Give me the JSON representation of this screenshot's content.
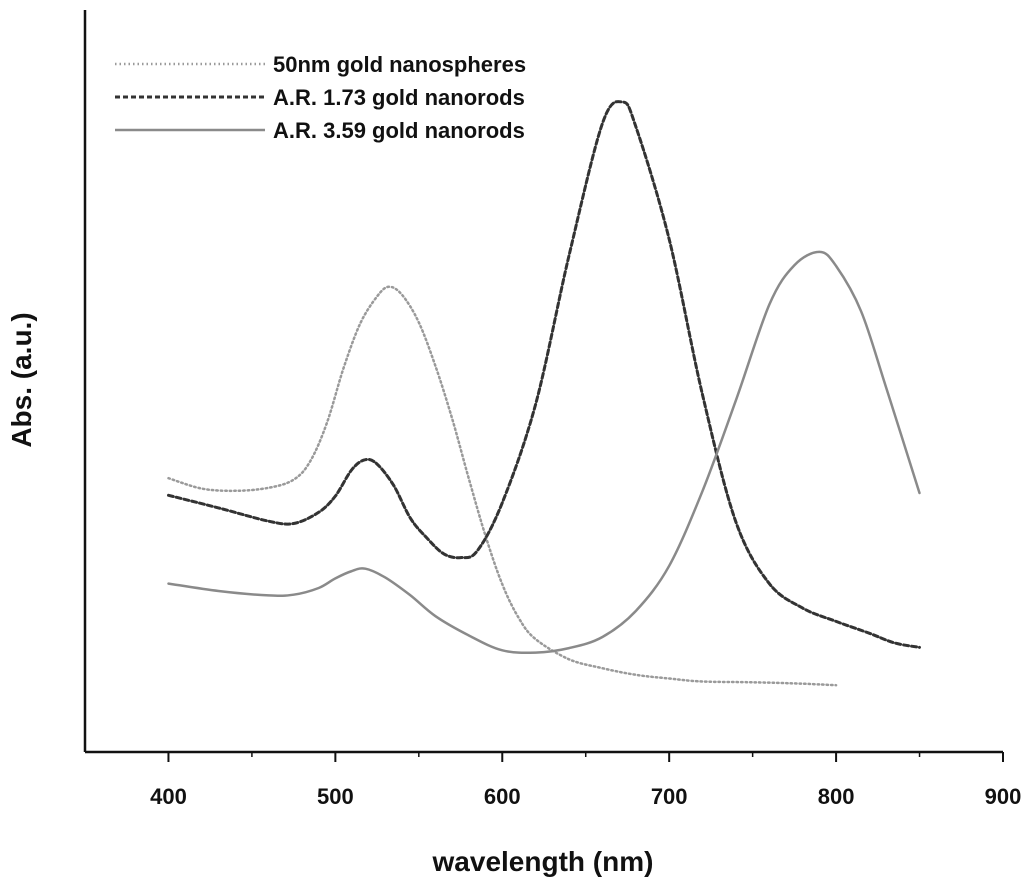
{
  "chart_data": {
    "type": "line",
    "xlabel": "wavelength (nm)",
    "ylabel": "Abs. (a.u.)",
    "xlim": [
      350,
      900
    ],
    "xticks": [
      400,
      500,
      600,
      700,
      800,
      900
    ],
    "ylim": [
      0,
      1
    ],
    "y_tick_labels_shown": false,
    "grid": false,
    "legend_position": "top-left",
    "series": [
      {
        "name": "50nm gold nanospheres",
        "color": "#9a9a9a",
        "dash": "dotted",
        "x": [
          400,
          420,
          440,
          460,
          475,
          485,
          495,
          505,
          515,
          525,
          532,
          540,
          550,
          560,
          570,
          580,
          590,
          600,
          610,
          620,
          640,
          660,
          680,
          700,
          720,
          750,
          780,
          800
        ],
        "y": [
          0.369,
          0.355,
          0.352,
          0.356,
          0.367,
          0.392,
          0.444,
          0.518,
          0.578,
          0.614,
          0.627,
          0.616,
          0.579,
          0.52,
          0.449,
          0.368,
          0.291,
          0.226,
          0.18,
          0.152,
          0.125,
          0.113,
          0.104,
          0.099,
          0.095,
          0.094,
          0.092,
          0.09
        ]
      },
      {
        "name": "A.R. 1.73 gold nanorods",
        "color": "#333333",
        "dash": "dashed",
        "x": [
          400,
          430,
          460,
          475,
          490,
          500,
          510,
          518,
          525,
          535,
          545,
          555,
          565,
          575,
          585,
          600,
          620,
          640,
          660,
          672,
          680,
          700,
          720,
          740,
          760,
          780,
          800,
          820,
          835,
          850
        ],
        "y": [
          0.346,
          0.329,
          0.311,
          0.308,
          0.323,
          0.345,
          0.381,
          0.394,
          0.388,
          0.359,
          0.315,
          0.288,
          0.267,
          0.262,
          0.271,
          0.336,
          0.469,
          0.669,
          0.847,
          0.876,
          0.843,
          0.691,
          0.481,
          0.31,
          0.227,
          0.194,
          0.176,
          0.16,
          0.147,
          0.141
        ]
      },
      {
        "name": "A.R. 3.59 gold nanorods",
        "color": "#8a8a8a",
        "dash": "solid",
        "x": [
          400,
          430,
          460,
          475,
          490,
          500,
          510,
          518,
          530,
          545,
          560,
          580,
          600,
          620,
          640,
          660,
          680,
          700,
          720,
          740,
          760,
          775,
          790,
          800,
          815,
          830,
          850
        ],
        "y": [
          0.227,
          0.217,
          0.211,
          0.212,
          0.221,
          0.234,
          0.244,
          0.247,
          0.235,
          0.211,
          0.183,
          0.157,
          0.137,
          0.134,
          0.14,
          0.155,
          0.19,
          0.251,
          0.352,
          0.474,
          0.603,
          0.656,
          0.674,
          0.655,
          0.594,
          0.491,
          0.349
        ]
      }
    ]
  }
}
